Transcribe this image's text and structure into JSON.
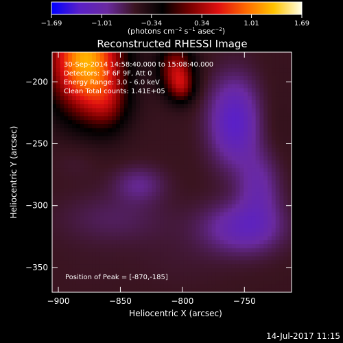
{
  "chart_data": {
    "type": "heatmap",
    "title": "Reconstructed RHESSI Image",
    "xlabel": "Heliocentric X (arcsec)",
    "ylabel": "Heliocentric Y (arcsec)",
    "xlim": [
      -905,
      -712
    ],
    "ylim": [
      -370,
      -176
    ],
    "x_ticks": [
      -900,
      -850,
      -800,
      -750
    ],
    "x_tick_labels": [
      "−900",
      "−850",
      "−800",
      "−750"
    ],
    "y_ticks": [
      -200,
      -250,
      -300,
      -350
    ],
    "y_tick_labels": [
      "−200",
      "−250",
      "−300",
      "−350"
    ],
    "colorbar": {
      "range": [
        -1.69,
        1.69
      ],
      "ticks": [
        -1.69,
        -1.01,
        -0.34,
        0.34,
        1.01,
        1.69
      ],
      "tick_labels": [
        "−1.69",
        "−1.01",
        "−0.34",
        "0.34",
        "1.01",
        "1.69"
      ],
      "units_text": "(photons cm",
      "units_exp1": "−2",
      "units_mid": " s",
      "units_exp2": "−1",
      "units_end": " asec",
      "units_exp3": "−2",
      "units_close": ")",
      "colors": [
        "#0000ff",
        "#5a20c8",
        "#6a2aa0",
        "#3a1420",
        "#000000",
        "#7a0000",
        "#e01010",
        "#ff6a00",
        "#ffc400",
        "#ffffe8"
      ]
    },
    "info_lines": [
      "30-Sep-2014 14:58:40.000 to 15:08:40.000",
      "Detectors: 3F 6F 9F, Att 0",
      "Energy Range: 3.0 - 6.0 keV",
      "Clean    Total counts: 1.41E+05"
    ],
    "peak_label": "Position of Peak = [-870,-185]",
    "sources": [
      {
        "x": -878,
        "y": -182,
        "sx": 20,
        "sy": 30,
        "amp": 1.78
      },
      {
        "x": -860,
        "y": -218,
        "sx": 12,
        "sy": 16,
        "amp": 0.45
      },
      {
        "x": -805,
        "y": -190,
        "sx": 10,
        "sy": 14,
        "amp": 0.9
      },
      {
        "x": -800,
        "y": -205,
        "sx": 7,
        "sy": 9,
        "amp": 0.5
      },
      {
        "x": -758,
        "y": -232,
        "sx": 14,
        "sy": 24,
        "amp": -0.75
      },
      {
        "x": -738,
        "y": -285,
        "sx": 12,
        "sy": 22,
        "amp": -0.45
      },
      {
        "x": -752,
        "y": -318,
        "sx": 22,
        "sy": 14,
        "amp": -0.55
      },
      {
        "x": -835,
        "y": -283,
        "sx": 14,
        "sy": 10,
        "amp": -0.32
      },
      {
        "x": -855,
        "y": -310,
        "sx": 30,
        "sy": 14,
        "amp": -0.18
      },
      {
        "x": -885,
        "y": -262,
        "sx": 14,
        "sy": 12,
        "amp": -0.08
      },
      {
        "x": -730,
        "y": -250,
        "sx": 12,
        "sy": 30,
        "amp": 0.08
      },
      {
        "x": -800,
        "y": -340,
        "sx": 30,
        "sy": 20,
        "amp": -0.05
      },
      {
        "x": -880,
        "y": -350,
        "sx": 25,
        "sy": 25,
        "amp": -0.02
      }
    ],
    "background": -0.55,
    "grid": false,
    "legend": "colorbar-top"
  },
  "timestamp": "14-Jul-2017 11:15"
}
